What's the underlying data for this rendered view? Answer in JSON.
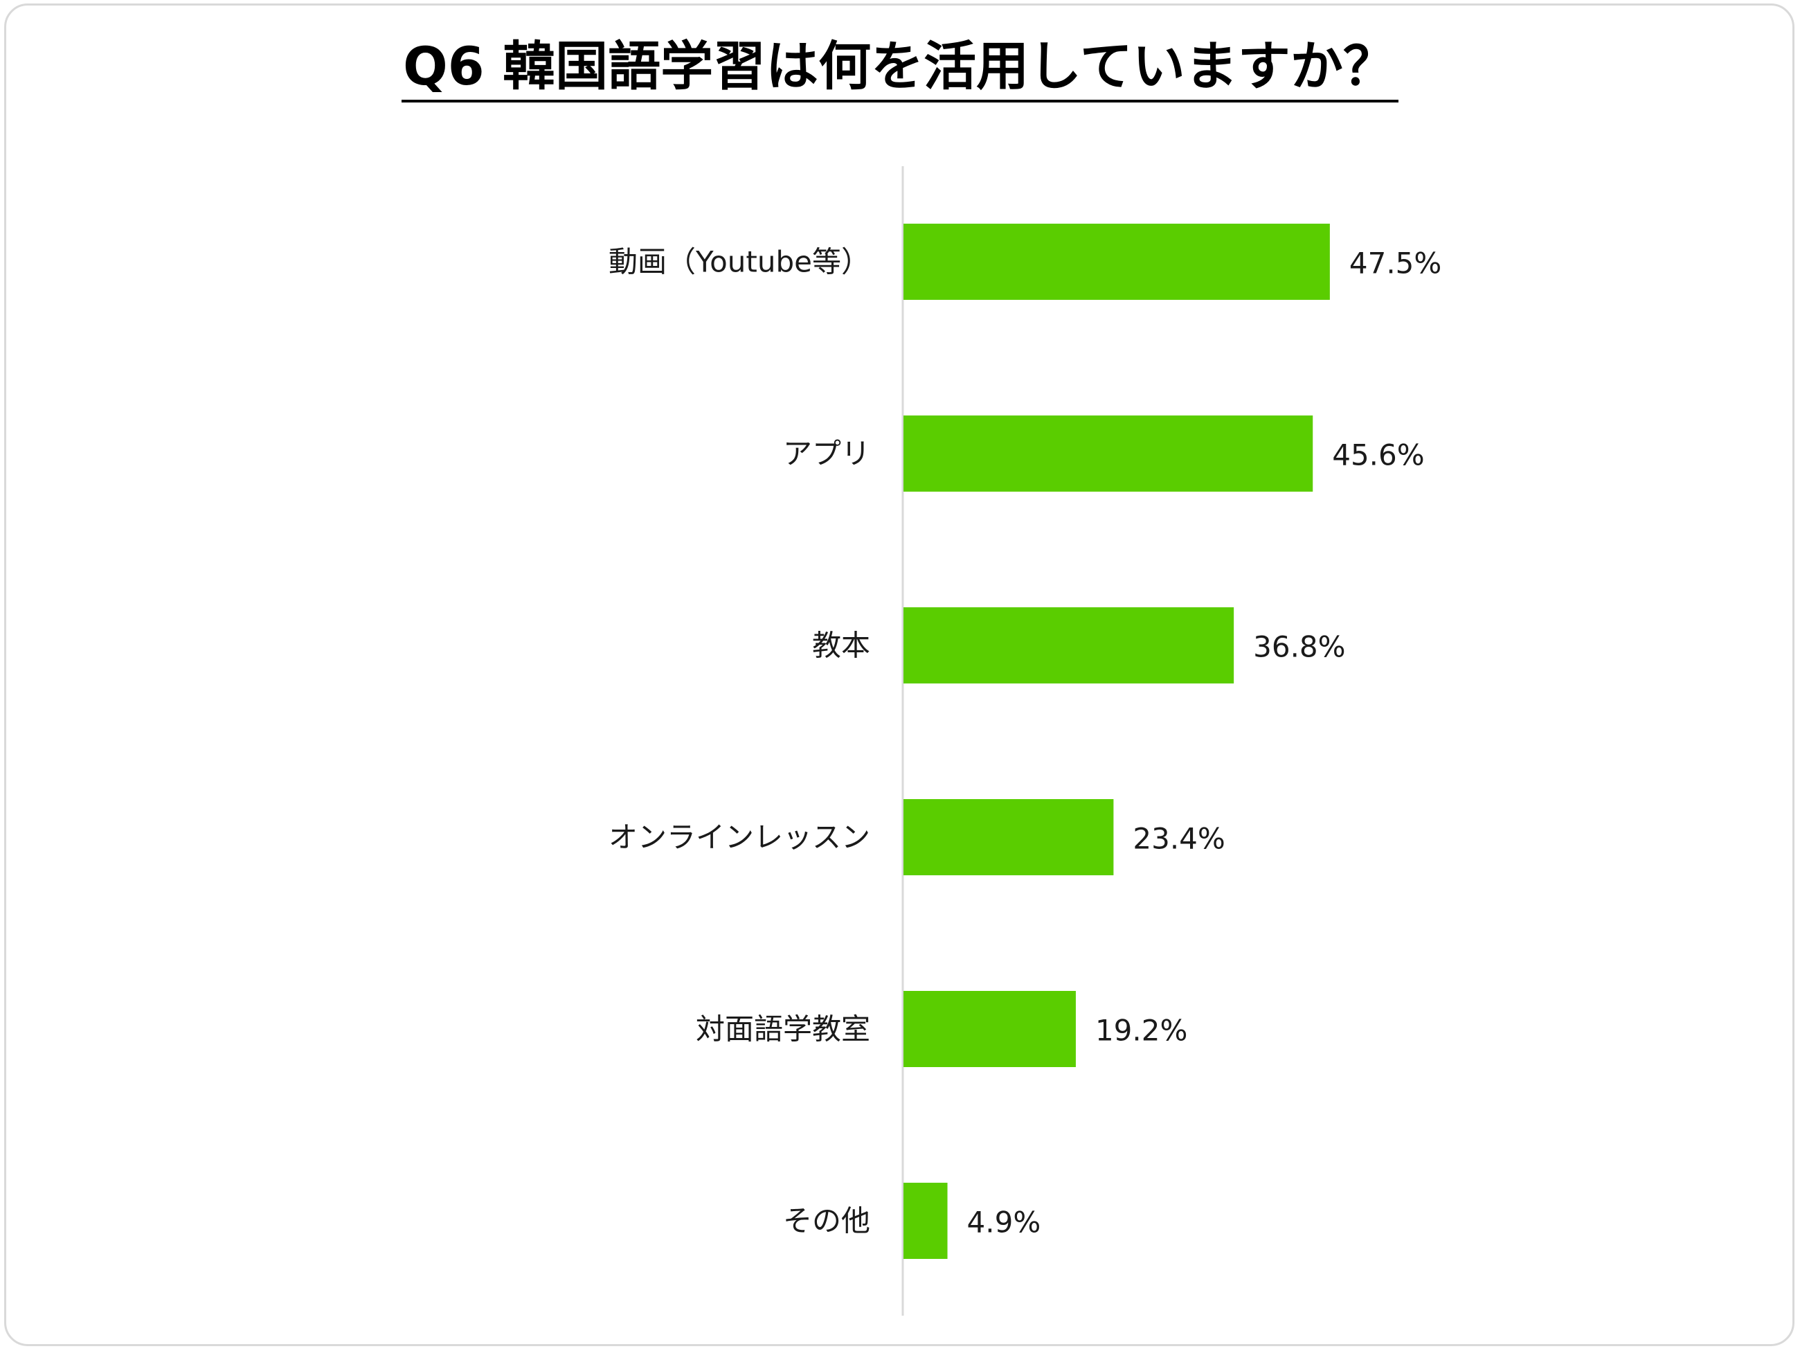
{
  "chart_data": {
    "type": "bar",
    "orientation": "horizontal",
    "title": "Q6 韓国語学習は何を活用していますか？",
    "categories": [
      "動画（Youtube等）",
      "アプリ",
      "教本",
      "オンラインレッスン",
      "対面語学教室",
      "その他"
    ],
    "values": [
      47.5,
      45.6,
      36.8,
      23.4,
      19.2,
      4.9
    ],
    "value_labels": [
      "47.5%",
      "45.6%",
      "36.8%",
      "23.4%",
      "19.2%",
      "4.9%"
    ],
    "unit": "%",
    "xlim": [
      0,
      100
    ],
    "grid": false,
    "legend": "none",
    "bar_color": "#5acd00",
    "axis_color": "#d9d9d9"
  }
}
